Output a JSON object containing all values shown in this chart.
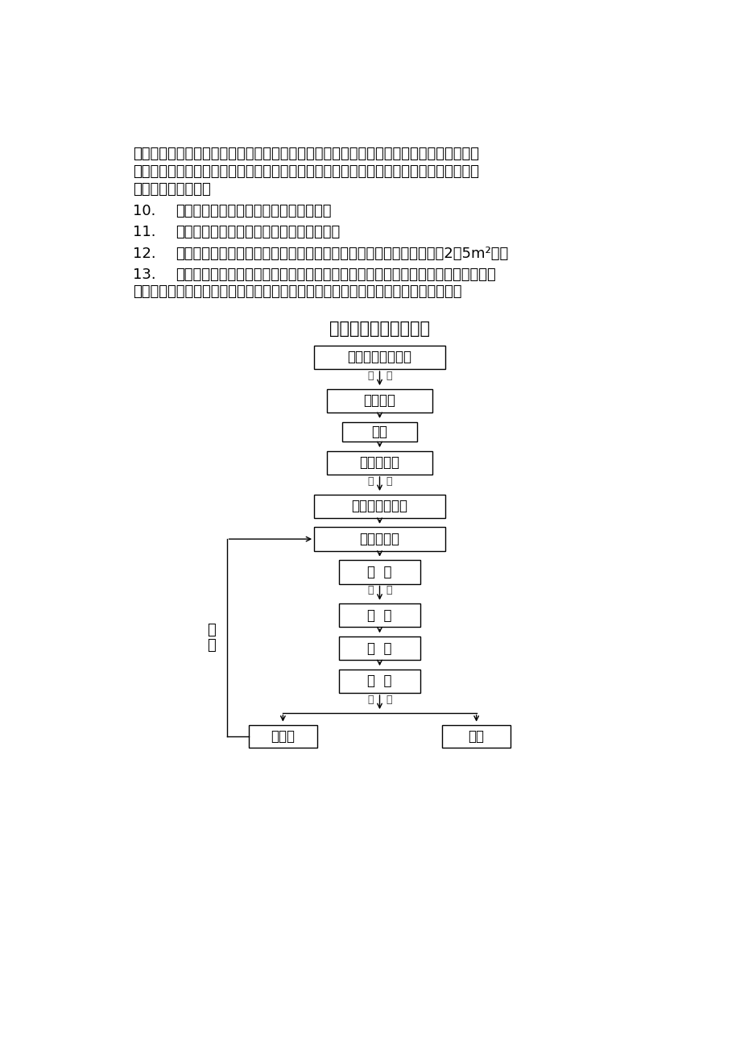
{
  "background_color": "#ffffff",
  "text_color": "#000000",
  "title_flowchart": "块料面层质量检查流程",
  "line1": "格证和检验报告，送检合格后方可使用。不同批次的水泥在进场后要分别进行报验及送检。",
  "line2": "现场无论砂筑、抄灰或者其他分项工程一律不允许使用砂筑水泥和各类矿渣、鈢渣水泥，只",
  "line3": "允许使用普硒水泥。",
  "item10_num": "10.",
  "item10_text": "所有木结构均须采用真空加压防腐处理。",
  "item11_num": "11.",
  "item11_text": "所有面层铺装前均须报排砖图经甲方确认。",
  "item12_num": "12.",
  "item12_text": "样板施工：当分段施工时不同区域面层铺装均须先作样板（样板面积：2～5m²）。",
  "item13_num": "13.",
  "item13_text1": "保证地面不积水，按设计或规范作好排水坡度，如设计不合理易造成积水，乙方应在",
  "item13_text2": "施工前提出，由甲方确定处理方案。如施工完后现场局部积水，乙方有义务进行处理。",
  "node0": "块料面层施工方案",
  "node1": "清理基层",
  "node2": "弹线",
  "node3": "安装标准块",
  "node4": "甲方确认、调整",
  "node5": "大面积铺装",
  "node6": "勾  缝",
  "node7": "清  洁",
  "node8": "养  护",
  "node9": "验  收",
  "node10": "不合格",
  "node11": "合格",
  "bj": "报验",
  "zheng": "整",
  "gai": "改"
}
